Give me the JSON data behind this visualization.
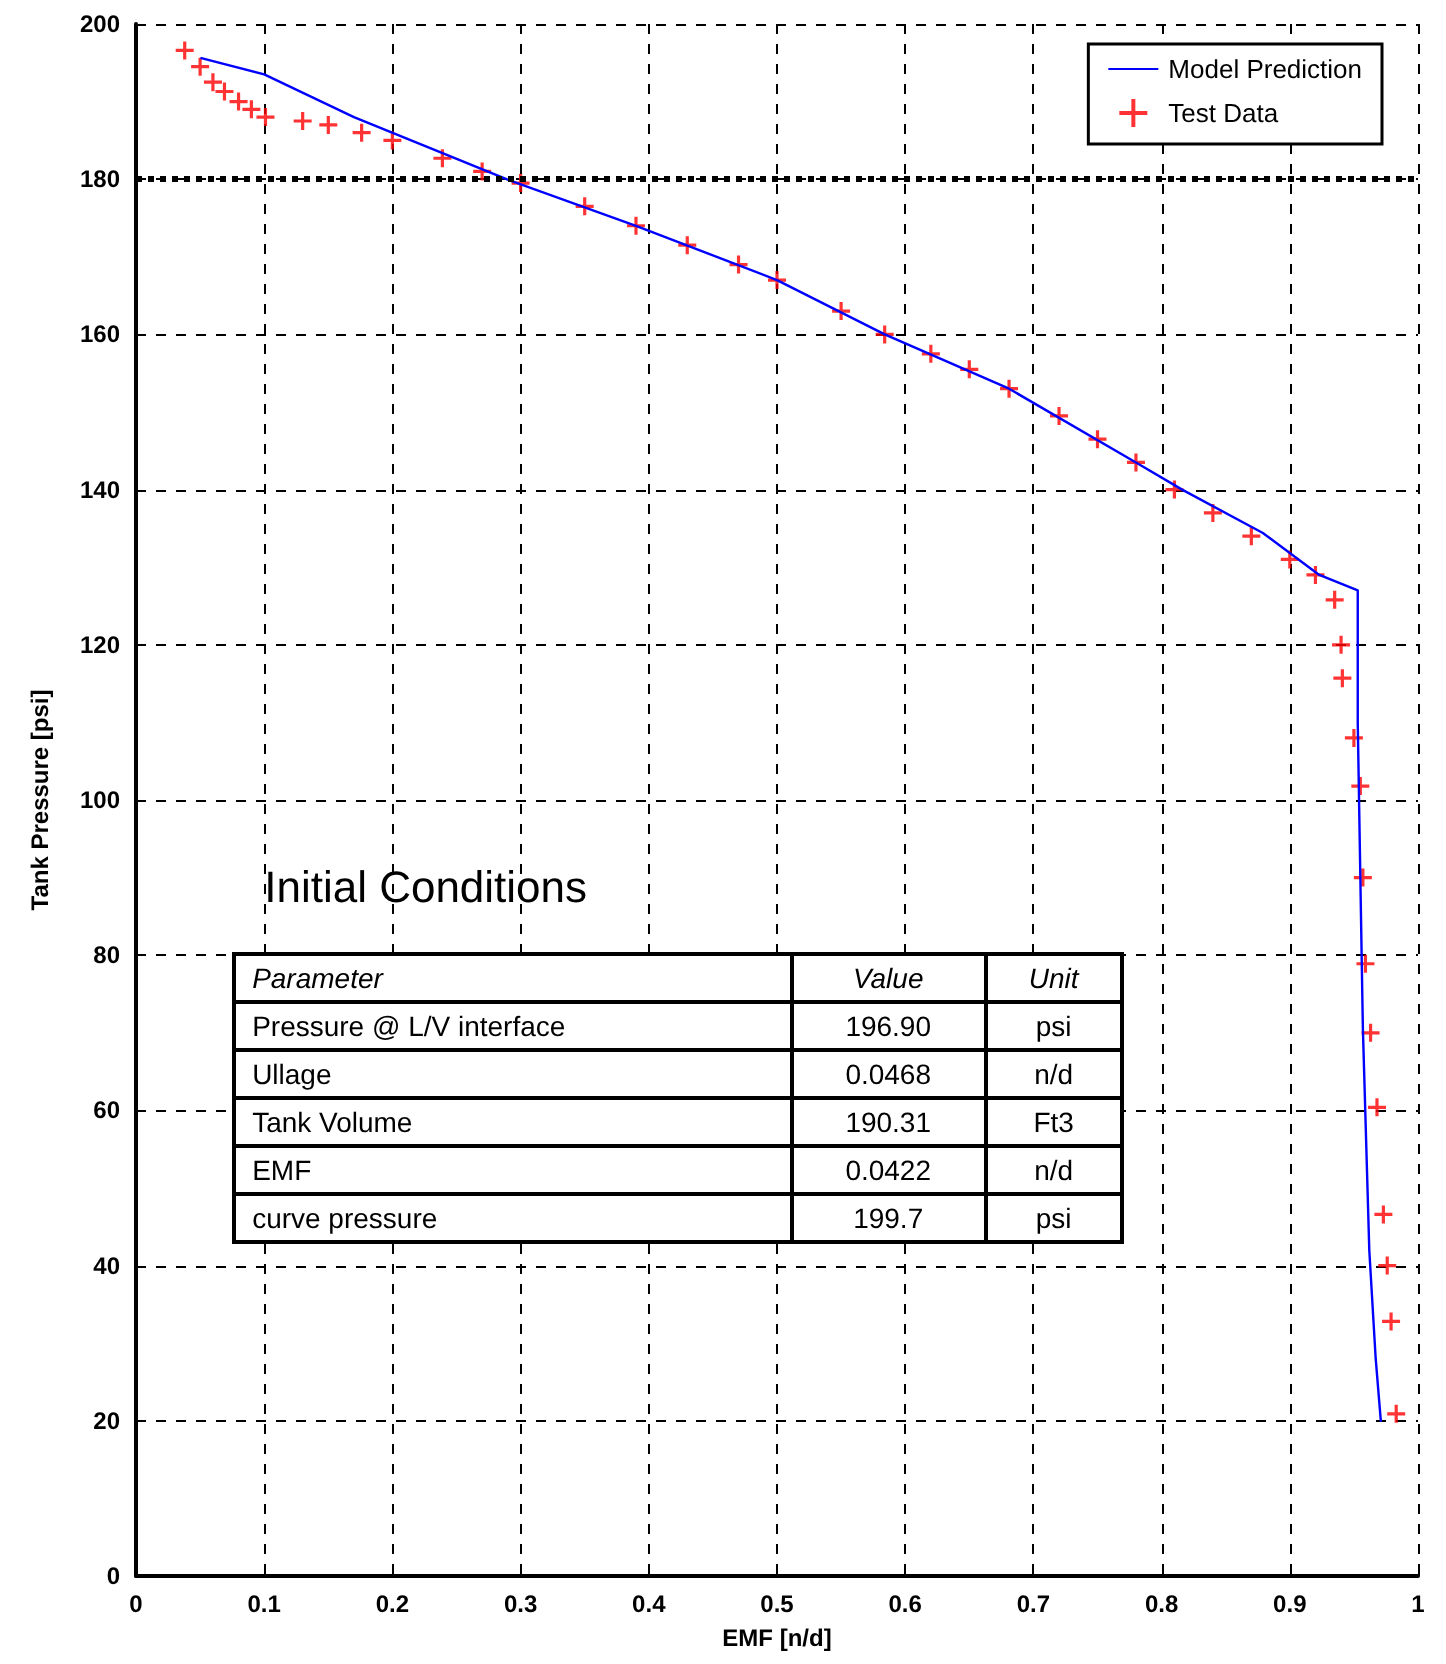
{
  "chart_data": {
    "type": "line",
    "xlabel": "EMF [n/d]",
    "ylabel": "Tank Pressure [psi]",
    "xlim": [
      0,
      1
    ],
    "xticks": [
      0,
      0.1,
      0.2,
      0.3,
      0.4,
      0.5,
      0.6,
      0.7,
      0.8,
      0.9,
      1
    ],
    "ylim": [
      0,
      200
    ],
    "yticks": [
      0,
      20,
      40,
      60,
      80,
      100,
      120,
      140,
      160,
      180,
      200
    ],
    "grid": true,
    "legend": "top right",
    "series": [
      {
        "name": "Model Prediction",
        "color": "#0000ff",
        "marker": "none",
        "line_style": "solid",
        "x": [
          0.051,
          0.1,
          0.17,
          0.289,
          0.39,
          0.5,
          0.584,
          0.681,
          0.78,
          0.816,
          0.879,
          0.923,
          0.938,
          0.953,
          0.953,
          0.957,
          0.962,
          0.967,
          0.971
        ],
        "values": [
          195.6,
          193.5,
          188,
          180,
          174,
          167,
          160,
          153,
          143.5,
          140,
          134.4,
          129,
          128,
          127,
          110,
          70.6,
          42,
          28,
          20
        ]
      },
      {
        "name": "Test Data",
        "type": "scatter",
        "color": "#ff0000",
        "marker": "cross",
        "x": [
          0.038,
          0.05,
          0.06,
          0.069,
          0.08,
          0.09,
          0.101,
          0.13,
          0.15,
          0.176,
          0.2,
          0.239,
          0.27,
          0.3,
          0.35,
          0.39,
          0.43,
          0.47,
          0.5,
          0.55,
          0.584,
          0.62,
          0.65,
          0.681,
          0.72,
          0.75,
          0.78,
          0.81,
          0.84,
          0.87,
          0.9,
          0.92,
          0.935,
          0.94,
          0.941,
          0.95,
          0.955,
          0.957,
          0.959,
          0.963,
          0.968,
          0.973,
          0.976,
          0.979,
          0.983
        ],
        "values": [
          196.6,
          194.5,
          192.5,
          191.3,
          190,
          189,
          188,
          187.5,
          187,
          186,
          185,
          182.7,
          181,
          179.5,
          176.5,
          174,
          171.5,
          169,
          167,
          163,
          160,
          157.5,
          155.5,
          153,
          149.5,
          146.5,
          143.5,
          140,
          137,
          134,
          131,
          129,
          125.8,
          120,
          115.7,
          108,
          101.8,
          90,
          78.9,
          70,
          60.4,
          46.6,
          40,
          32.8,
          20.9
        ]
      }
    ],
    "ref_lines": [
      {
        "axis": "y",
        "value": 180,
        "color": "#000000",
        "line_style": "dotted"
      }
    ],
    "annotations": [
      "Initial Conditions",
      "Parameter",
      "Value",
      "Unit",
      "Pressure @ L/V interface",
      "196.90",
      "psi",
      "Ullage",
      "0.0468",
      "n/d",
      "Tank Volume",
      "190.31",
      "Ft3",
      "EMF",
      "0.0422",
      "n/d",
      "curve pressure",
      "199.7",
      "psi"
    ]
  }
}
